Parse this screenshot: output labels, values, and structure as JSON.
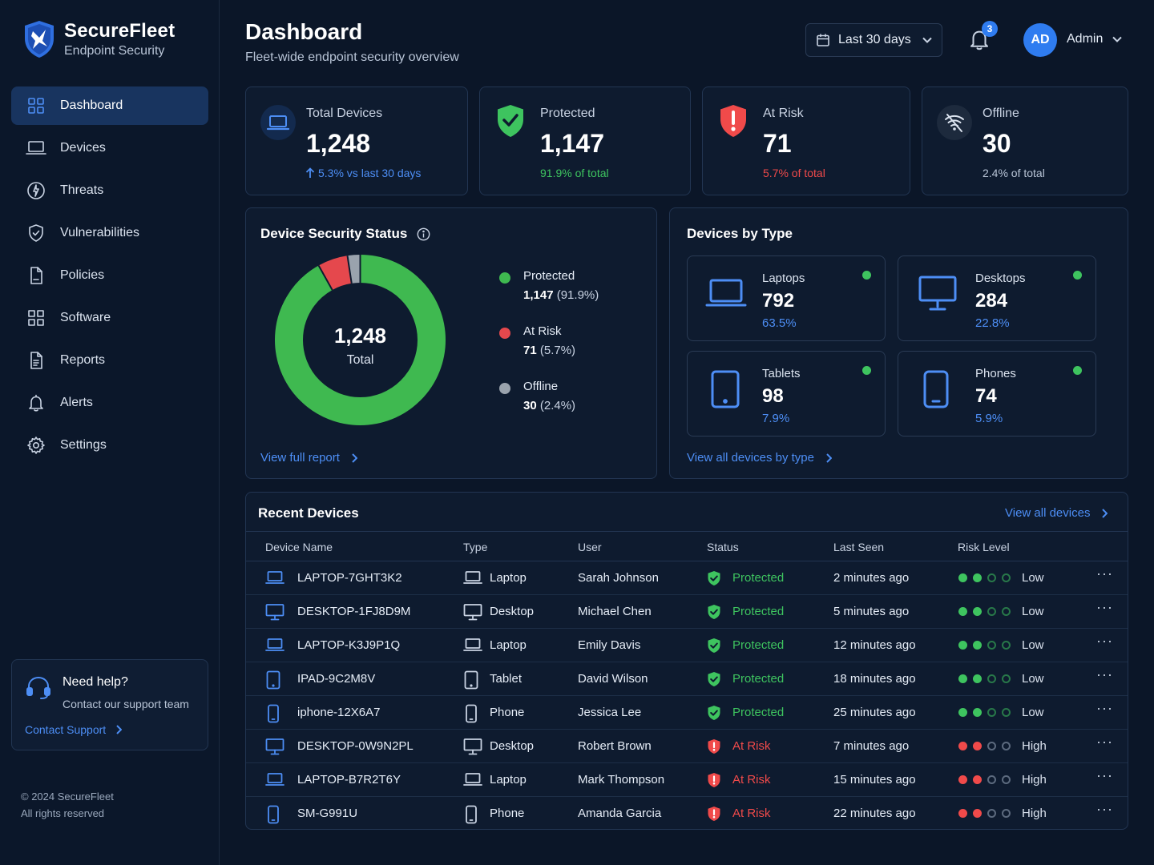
{
  "brand": {
    "name": "SecureFleet",
    "subtitle": "Endpoint Security"
  },
  "nav": [
    {
      "label": "Dashboard",
      "icon": "grid-icon",
      "active": true
    },
    {
      "label": "Devices",
      "icon": "laptop-icon"
    },
    {
      "label": "Threats",
      "icon": "threat-icon"
    },
    {
      "label": "Vulnerabilities",
      "icon": "shield-icon"
    },
    {
      "label": "Policies",
      "icon": "document-icon"
    },
    {
      "label": "Software",
      "icon": "apps-icon"
    },
    {
      "label": "Reports",
      "icon": "report-icon"
    },
    {
      "label": "Alerts",
      "icon": "bell-icon"
    },
    {
      "label": "Settings",
      "icon": "gear-icon"
    }
  ],
  "help": {
    "title": "Need help?",
    "subtitle": "Contact our support team",
    "link": "Contact Support"
  },
  "footer": {
    "line1": "© 2024 SecureFleet",
    "line2": "All rights reserved"
  },
  "header": {
    "title": "Dashboard",
    "subtitle": "Fleet-wide endpoint security overview",
    "date_range": "Last 30 days",
    "notifications": "3",
    "avatar_initials": "AD",
    "user": "Admin"
  },
  "stats": [
    {
      "label": "Total Devices",
      "value": "1,248",
      "note": "5.3% vs last 30 days",
      "tone": "blue",
      "icon": "laptop-icon"
    },
    {
      "label": "Protected",
      "value": "1,147",
      "note": "91.9% of total",
      "tone": "green",
      "icon": "shield-check-icon"
    },
    {
      "label": "At Risk",
      "value": "71",
      "note": "5.7% of total",
      "tone": "red",
      "icon": "shield-alert-icon"
    },
    {
      "label": "Offline",
      "value": "30",
      "note": "2.4% of total",
      "tone": "grey",
      "icon": "wifi-off-icon"
    }
  ],
  "security_status": {
    "title": "Device Security Status",
    "total": "1,248",
    "total_label": "Total",
    "segments": [
      {
        "name": "Protected",
        "count": "1,147",
        "pct": "(91.9%)",
        "value": 91.9,
        "color": "#3fb950"
      },
      {
        "name": "At Risk",
        "count": "71",
        "pct": "(5.7%)",
        "value": 5.7,
        "color": "#e5484d"
      },
      {
        "name": "Offline",
        "count": "30",
        "pct": "(2.4%)",
        "value": 2.4,
        "color": "#9aa3ad"
      }
    ],
    "link": "View full report"
  },
  "devices_by_type": {
    "title": "Devices by Type",
    "items": [
      {
        "name": "Laptops",
        "count": "792",
        "pct": "63.5%",
        "icon": "laptop-icon"
      },
      {
        "name": "Desktops",
        "count": "284",
        "pct": "22.8%",
        "icon": "desktop-icon"
      },
      {
        "name": "Tablets",
        "count": "98",
        "pct": "7.9%",
        "icon": "tablet-icon"
      },
      {
        "name": "Phones",
        "count": "74",
        "pct": "5.9%",
        "icon": "phone-icon"
      }
    ],
    "link": "View all devices by type"
  },
  "recent": {
    "title": "Recent Devices",
    "link": "View all devices",
    "columns": [
      "Device Name",
      "Type",
      "User",
      "Status",
      "Last Seen",
      "Risk Level"
    ],
    "rows": [
      {
        "name": "LAPTOP-7GHT3K2",
        "type": "Laptop",
        "user": "Sarah Johnson",
        "status": "Protected",
        "seen": "2 minutes ago",
        "risk": "Low"
      },
      {
        "name": "DESKTOP-1FJ8D9M",
        "type": "Desktop",
        "user": "Michael Chen",
        "status": "Protected",
        "seen": "5 minutes ago",
        "risk": "Low"
      },
      {
        "name": "LAPTOP-K3J9P1Q",
        "type": "Laptop",
        "user": "Emily Davis",
        "status": "Protected",
        "seen": "12 minutes ago",
        "risk": "Low"
      },
      {
        "name": "IPAD-9C2M8V",
        "type": "Tablet",
        "user": "David Wilson",
        "status": "Protected",
        "seen": "18 minutes ago",
        "risk": "Low"
      },
      {
        "name": "iphone-12X6A7",
        "type": "Phone",
        "user": "Jessica Lee",
        "status": "Protected",
        "seen": "25 minutes ago",
        "risk": "Low"
      },
      {
        "name": "DESKTOP-0W9N2PL",
        "type": "Desktop",
        "user": "Robert Brown",
        "status": "At Risk",
        "seen": "7 minutes ago",
        "risk": "High"
      },
      {
        "name": "LAPTOP-B7R2T6Y",
        "type": "Laptop",
        "user": "Mark Thompson",
        "status": "At Risk",
        "seen": "15 minutes ago",
        "risk": "High"
      },
      {
        "name": "SM-G991U",
        "type": "Phone",
        "user": "Amanda Garcia",
        "status": "At Risk",
        "seen": "22 minutes ago",
        "risk": "High"
      }
    ]
  },
  "colors": {
    "accent": "#4d8ef5",
    "protected": "#3ec45f",
    "at_risk": "#f04a4a",
    "offline": "#9aa3ad",
    "background": "#0b1628"
  }
}
